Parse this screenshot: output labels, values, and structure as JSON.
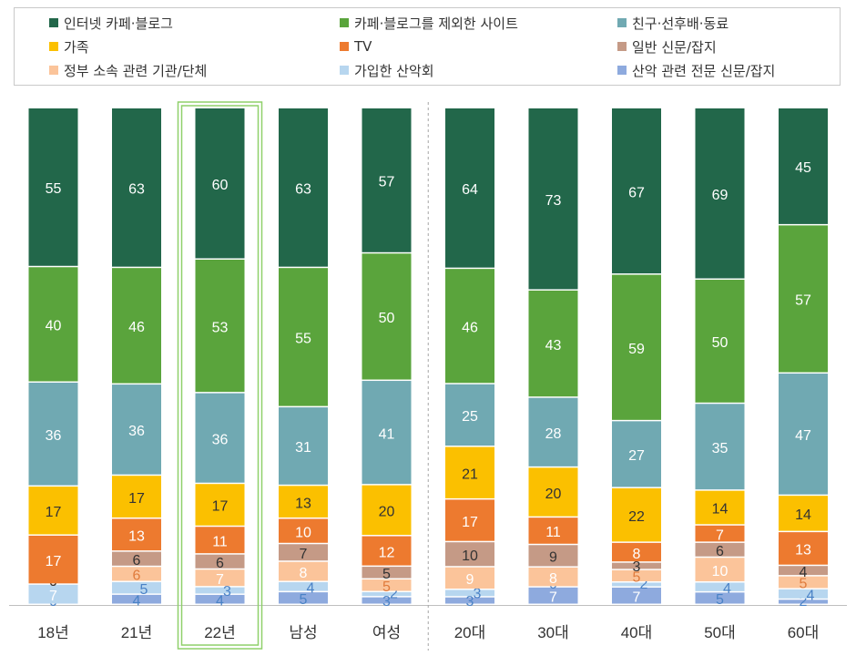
{
  "colors": {
    "internet_cafe_blog": "#22674a",
    "other_sites": "#5aa43c",
    "friends": "#70a9b2",
    "family": "#fbc000",
    "tv": "#ed7a2f",
    "newspaper": "#c59a86",
    "government": "#fbc49a",
    "club": "#b7d6ef",
    "mountain_media": "#8eaade"
  },
  "chart_data": {
    "type": "bar",
    "stacked": true,
    "title": "",
    "xlabel": "",
    "ylabel": "",
    "legend_position": "top",
    "grid": false,
    "categories": [
      "18년",
      "21년",
      "22년",
      "남성",
      "여성",
      "20대",
      "30대",
      "40대",
      "50대",
      "60대"
    ],
    "highlighted_category": "22년",
    "group_separator_after": "여성",
    "series": [
      {
        "key": "mountain_media",
        "name": "산악 관련 전문 신문/잡지",
        "values": [
          0,
          4,
          4,
          5,
          3,
          3,
          7,
          7,
          5,
          2
        ]
      },
      {
        "key": "club",
        "name": "가입한 산악회",
        "values": [
          7,
          5,
          3,
          4,
          2,
          3,
          0,
          2,
          4,
          4
        ]
      },
      {
        "key": "government",
        "name": "정부 소속 관련 기관/단체",
        "values": [
          0,
          6,
          7,
          8,
          5,
          9,
          8,
          5,
          10,
          5
        ]
      },
      {
        "key": "newspaper",
        "name": "일반 신문/잡지",
        "values": [
          0,
          6,
          6,
          7,
          5,
          10,
          9,
          3,
          6,
          4
        ]
      },
      {
        "key": "tv",
        "name": "TV",
        "values": [
          17,
          13,
          11,
          10,
          12,
          17,
          11,
          8,
          7,
          13
        ]
      },
      {
        "key": "family",
        "name": "가족",
        "values": [
          17,
          17,
          17,
          13,
          20,
          21,
          20,
          22,
          14,
          14
        ]
      },
      {
        "key": "friends",
        "name": "친구·선후배·동료",
        "values": [
          36,
          36,
          36,
          31,
          41,
          25,
          28,
          27,
          35,
          47
        ]
      },
      {
        "key": "other_sites",
        "name": "카페·블로그를 제외한 사이트",
        "values": [
          40,
          46,
          53,
          55,
          50,
          46,
          43,
          59,
          50,
          57
        ]
      },
      {
        "key": "internet_cafe_blog",
        "name": "인터넷 카페·블로그",
        "values": [
          55,
          63,
          60,
          63,
          57,
          64,
          73,
          67,
          69,
          45
        ]
      }
    ]
  },
  "legend": [
    {
      "key": "internet_cafe_blog",
      "label": "인터넷 카페·블로그"
    },
    {
      "key": "other_sites",
      "label": "카페·블로그를 제외한 사이트"
    },
    {
      "key": "friends",
      "label": "친구·선후배·동료"
    },
    {
      "key": "family",
      "label": "가족"
    },
    {
      "key": "tv",
      "label": "TV"
    },
    {
      "key": "newspaper",
      "label": "일반 신문/잡지"
    },
    {
      "key": "government",
      "label": "정부 소속 관련 기관/단체"
    },
    {
      "key": "club",
      "label": "가입한 산악회"
    },
    {
      "key": "mountain_media",
      "label": "산악 관련 전문 신문/잡지"
    }
  ]
}
